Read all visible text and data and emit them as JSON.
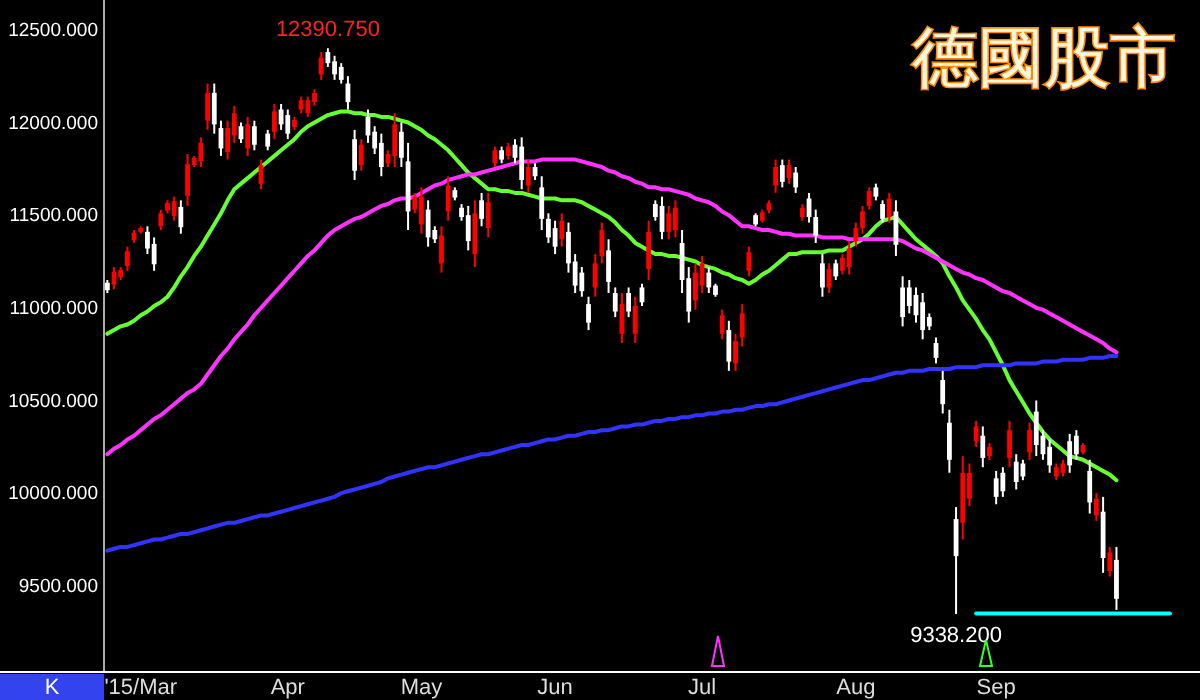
{
  "chart_data": {
    "type": "candlestick",
    "title": "德國股市",
    "categories": [
      null,
      null,
      null,
      null,
      null,
      "'15/Mar",
      null,
      null,
      null,
      null,
      null,
      null,
      null,
      null,
      null,
      null,
      null,
      null,
      null,
      null,
      null,
      null,
      null,
      null,
      null,
      null,
      null,
      "Apr",
      null,
      null,
      null,
      null,
      null,
      null,
      null,
      null,
      null,
      null,
      null,
      null,
      null,
      null,
      null,
      null,
      null,
      null,
      null,
      "May",
      null,
      null,
      null,
      null,
      null,
      null,
      null,
      null,
      null,
      null,
      null,
      null,
      null,
      null,
      null,
      null,
      null,
      null,
      null,
      "Jun",
      null,
      null,
      null,
      null,
      null,
      null,
      null,
      null,
      null,
      null,
      null,
      null,
      null,
      null,
      null,
      null,
      null,
      null,
      null,
      null,
      null,
      "Jul",
      null,
      null,
      null,
      null,
      null,
      null,
      null,
      null,
      null,
      null,
      null,
      null,
      null,
      null,
      null,
      null,
      null,
      null,
      null,
      null,
      null,
      null,
      "Aug",
      null,
      null,
      null,
      null,
      null,
      null,
      null,
      null,
      null,
      null,
      null,
      null,
      null,
      null,
      null,
      null,
      null,
      null,
      null,
      null,
      "Sep",
      null,
      null,
      null,
      null,
      null,
      null,
      null,
      null,
      null,
      null,
      null,
      null,
      null,
      null,
      null,
      null,
      null,
      null,
      null,
      null,
      null,
      null,
      null,
      null,
      null,
      null,
      null,
      null,
      null,
      null
    ],
    "ohlc": [
      [
        11125,
        11140,
        11070,
        11085
      ],
      [
        11115,
        11210,
        11090,
        11185
      ],
      [
        11155,
        11210,
        11140,
        11195
      ],
      [
        11215,
        11320,
        11190,
        11295
      ],
      [
        11355,
        11410,
        11340,
        11395
      ],
      [
        11400,
        11430,
        11390,
        11420
      ],
      [
        11400,
        11430,
        11280,
        11310
      ],
      [
        11335,
        11370,
        11190,
        11225
      ],
      [
        11430,
        11520,
        11410,
        11500
      ],
      [
        11515,
        11570,
        11500,
        11555
      ],
      [
        11485,
        11590,
        11460,
        11565
      ],
      [
        11535,
        11570,
        11390,
        11425
      ],
      [
        11595,
        11820,
        11540,
        11765
      ],
      [
        11760,
        11810,
        11750,
        11800
      ],
      [
        11780,
        11910,
        11750,
        11880
      ],
      [
        12000,
        12200,
        11950,
        12150
      ],
      [
        12150,
        12200,
        11930,
        11980
      ],
      [
        11960,
        12000,
        11810,
        11850
      ],
      [
        11830,
        12000,
        11790,
        11960
      ],
      [
        11920,
        12080,
        11880,
        12040
      ],
      [
        11970,
        11990,
        11880,
        11900
      ],
      [
        11850,
        12020,
        11810,
        11980
      ],
      [
        11970,
        12000,
        11840,
        11870
      ],
      [
        11660,
        11790,
        11630,
        11760
      ],
      [
        11930,
        11950,
        11840,
        11860
      ],
      [
        11940,
        12090,
        11900,
        12050
      ],
      [
        12060,
        12090,
        11950,
        11980
      ],
      [
        12030,
        12060,
        11900,
        11930
      ],
      [
        11965,
        12020,
        11950,
        12005
      ],
      [
        12060,
        12130,
        12040,
        12110
      ],
      [
        12040,
        12130,
        12020,
        12110
      ],
      [
        12100,
        12170,
        12080,
        12150
      ],
      [
        12250,
        12370,
        12220,
        12340
      ],
      [
        12370,
        12390.75,
        12290,
        12310
      ],
      [
        12320,
        12350,
        12220,
        12250
      ],
      [
        12290,
        12310,
        12200,
        12220
      ],
      [
        12200,
        12240,
        12060,
        12100
      ],
      [
        11900,
        11950,
        11680,
        11730
      ],
      [
        11760,
        11900,
        11730,
        11870
      ],
      [
        12020,
        12060,
        11880,
        11920
      ],
      [
        11940,
        11970,
        11820,
        11850
      ],
      [
        11880,
        11930,
        11700,
        11750
      ],
      [
        11770,
        11840,
        11750,
        11820
      ],
      [
        11810,
        12040,
        11750,
        11980
      ],
      [
        11940,
        11990,
        11750,
        11800
      ],
      [
        11780,
        11880,
        11410,
        11510
      ],
      [
        11520,
        11610,
        11500,
        11590
      ],
      [
        11440,
        11640,
        11390,
        11590
      ],
      [
        11520,
        11570,
        11320,
        11370
      ],
      [
        11410,
        11430,
        11340,
        11360
      ],
      [
        11230,
        11430,
        11180,
        11380
      ],
      [
        11510,
        11700,
        11460,
        11650
      ],
      [
        11625,
        11640,
        11570,
        11585
      ],
      [
        11530,
        11550,
        11460,
        11480
      ],
      [
        11490,
        11540,
        11300,
        11350
      ],
      [
        11280,
        11570,
        11210,
        11500
      ],
      [
        11570,
        11610,
        11430,
        11470
      ],
      [
        11420,
        11610,
        11370,
        11560
      ],
      [
        11770,
        11860,
        11750,
        11840
      ],
      [
        11840,
        11860,
        11770,
        11790
      ],
      [
        11810,
        11880,
        11790,
        11860
      ],
      [
        11870,
        11900,
        11770,
        11800
      ],
      [
        11860,
        11910,
        11630,
        11680
      ],
      [
        11650,
        11790,
        11610,
        11750
      ],
      [
        11750,
        11770,
        11680,
        11700
      ],
      [
        11640,
        11700,
        11410,
        11470
      ],
      [
        11470,
        11500,
        11340,
        11370
      ],
      [
        11420,
        11460,
        11280,
        11320
      ],
      [
        11360,
        11500,
        11320,
        11460
      ],
      [
        11400,
        11450,
        11180,
        11230
      ],
      [
        11240,
        11280,
        11070,
        11110
      ],
      [
        11180,
        11210,
        11050,
        11080
      ],
      [
        11010,
        11050,
        10870,
        10910
      ],
      [
        11100,
        11280,
        11050,
        11230
      ],
      [
        11270,
        11450,
        11230,
        11410
      ],
      [
        11300,
        11360,
        11070,
        11130
      ],
      [
        11070,
        11100,
        10940,
        10970
      ],
      [
        10850,
        11070,
        10800,
        11010
      ],
      [
        11070,
        11100,
        10940,
        10970
      ],
      [
        10850,
        11050,
        10800,
        11000
      ],
      [
        11100,
        11120,
        11000,
        11020
      ],
      [
        11200,
        11460,
        11140,
        11400
      ],
      [
        11550,
        11570,
        11460,
        11480
      ],
      [
        11540,
        11590,
        11360,
        11400
      ],
      [
        11400,
        11540,
        11360,
        11500
      ],
      [
        11410,
        11570,
        11370,
        11530
      ],
      [
        11340,
        11410,
        11070,
        11140
      ],
      [
        11150,
        11210,
        10910,
        10970
      ],
      [
        11030,
        11230,
        10980,
        11180
      ],
      [
        11110,
        11270,
        11070,
        11230
      ],
      [
        11180,
        11210,
        11070,
        11100
      ],
      [
        11110,
        11120,
        11050,
        11060
      ],
      [
        10850,
        10980,
        10820,
        10950
      ],
      [
        10870,
        10920,
        10650,
        10700
      ],
      [
        10690,
        10850,
        10650,
        10810
      ],
      [
        10830,
        11010,
        10780,
        10960
      ],
      [
        11190,
        11320,
        11160,
        11290
      ],
      [
        11490,
        11500,
        11430,
        11440
      ],
      [
        11460,
        11520,
        11450,
        11505
      ],
      [
        11515,
        11570,
        11500,
        11555
      ],
      [
        11650,
        11790,
        11610,
        11750
      ],
      [
        11760,
        11790,
        11640,
        11670
      ],
      [
        11690,
        11790,
        11660,
        11760
      ],
      [
        11720,
        11750,
        11610,
        11640
      ],
      [
        11480,
        11550,
        11460,
        11530
      ],
      [
        11580,
        11610,
        11450,
        11480
      ],
      [
        11480,
        11520,
        11340,
        11380
      ],
      [
        11230,
        11280,
        11050,
        11100
      ],
      [
        11100,
        11230,
        11070,
        11200
      ],
      [
        11230,
        11250,
        11140,
        11160
      ],
      [
        11190,
        11280,
        11170,
        11260
      ],
      [
        11210,
        11350,
        11170,
        11310
      ],
      [
        11350,
        11450,
        11320,
        11420
      ],
      [
        11420,
        11540,
        11390,
        11510
      ],
      [
        11540,
        11640,
        11520,
        11620
      ],
      [
        11640,
        11660,
        11570,
        11590
      ],
      [
        11550,
        11570,
        11450,
        11470
      ],
      [
        11480,
        11610,
        11450,
        11580
      ],
      [
        11510,
        11570,
        11270,
        11330
      ],
      [
        11100,
        11160,
        10890,
        10940
      ],
      [
        11100,
        11140,
        10960,
        11000
      ],
      [
        11060,
        11100,
        10910,
        10950
      ],
      [
        11020,
        11070,
        10820,
        10870
      ],
      [
        10940,
        10960,
        10870,
        10890
      ],
      [
        10800,
        10830,
        10690,
        10720
      ],
      [
        10600,
        10650,
        10420,
        10470
      ],
      [
        10370,
        10440,
        10100,
        10170
      ],
      [
        9850,
        9915,
        9338.2,
        9650
      ],
      [
        9830,
        10190,
        9740,
        10100
      ],
      [
        9960,
        10150,
        9920,
        10100
      ],
      [
        10270,
        10380,
        10240,
        10350
      ],
      [
        10300,
        10350,
        10130,
        10180
      ],
      [
        10190,
        10260,
        10170,
        10240
      ],
      [
        10070,
        10110,
        9930,
        9970
      ],
      [
        10100,
        10130,
        9970,
        10000
      ],
      [
        10180,
        10380,
        10130,
        10330
      ],
      [
        10160,
        10200,
        10010,
        10050
      ],
      [
        10150,
        10170,
        10060,
        10080
      ],
      [
        10210,
        10370,
        10170,
        10330
      ],
      [
        10430,
        10490,
        10190,
        10250
      ],
      [
        10300,
        10330,
        10170,
        10200
      ],
      [
        10240,
        10280,
        10100,
        10140
      ],
      [
        10080,
        10150,
        10060,
        10130
      ],
      [
        10100,
        10170,
        10080,
        10150
      ],
      [
        10270,
        10310,
        10100,
        10140
      ],
      [
        10300,
        10330,
        10170,
        10200
      ],
      [
        10210,
        10260,
        10200,
        10250
      ],
      [
        10110,
        10170,
        9880,
        9940
      ],
      [
        9870,
        9990,
        9840,
        9960
      ],
      [
        9890,
        9970,
        9560,
        9640
      ],
      [
        9570,
        9700,
        9540,
        9670
      ],
      [
        9630,
        9700,
        9360,
        9420
      ],
      null,
      null,
      null,
      null,
      null,
      null,
      null,
      null,
      null,
      null,
      null,
      null
    ],
    "colors": [
      "#ffffff",
      "#ff0000",
      "#ff0000",
      "#ff0000",
      "#ff0000",
      "#ff0000",
      "#ffffff",
      "#ffffff",
      "#ff0000",
      "#ff0000",
      "#ff0000",
      "#ffffff",
      "#ff0000",
      "#ff0000",
      "#ff0000",
      "#ff0000",
      "#ffffff",
      "#ffffff",
      "#ff0000",
      "#ff0000",
      "#ffffff",
      "#ff0000",
      "#ffffff",
      "#ff0000",
      "#ffffff",
      "#ff0000",
      "#ffffff",
      "#ffffff",
      "#ff0000",
      "#ff0000",
      "#ff0000",
      "#ff0000",
      "#ff0000",
      "#ffffff",
      "#ffffff",
      "#ffffff",
      "#ffffff",
      "#ffffff",
      "#ff0000",
      "#ffffff",
      "#ffffff",
      "#ffffff",
      "#ff0000",
      "#ff0000",
      "#ffffff",
      "#ffffff",
      "#ff0000",
      "#ff0000",
      "#ffffff",
      "#ffffff",
      "#ff0000",
      "#ff0000",
      "#ffffff",
      "#ffffff",
      "#ffffff",
      "#ff0000",
      "#ffffff",
      "#ff0000",
      "#ff0000",
      "#ffffff",
      "#ff0000",
      "#ffffff",
      "#ffffff",
      "#ff0000",
      "#ffffff",
      "#ffffff",
      "#ffffff",
      "#ffffff",
      "#ff0000",
      "#ffffff",
      "#ffffff",
      "#ffffff",
      "#ffffff",
      "#ff0000",
      "#ff0000",
      "#ffffff",
      "#ffffff",
      "#ff0000",
      "#ffffff",
      "#ff0000",
      "#ffffff",
      "#ff0000",
      "#ffffff",
      "#ffffff",
      "#ff0000",
      "#ff0000",
      "#ffffff",
      "#ffffff",
      "#ff0000",
      "#ff0000",
      "#ffffff",
      "#ffffff",
      "#ff0000",
      "#ffffff",
      "#ff0000",
      "#ff0000",
      "#ff0000",
      "#ffffff",
      "#ff0000",
      "#ff0000",
      "#ff0000",
      "#ffffff",
      "#ff0000",
      "#ffffff",
      "#ff0000",
      "#ffffff",
      "#ffffff",
      "#ffffff",
      "#ff0000",
      "#ffffff",
      "#ff0000",
      "#ff0000",
      "#ff0000",
      "#ff0000",
      "#ff0000",
      "#ffffff",
      "#ffffff",
      "#ff0000",
      "#ffffff",
      "#ffffff",
      "#ffffff",
      "#ffffff",
      "#ffffff",
      "#ffffff",
      "#ffffff",
      "#ffffff",
      "#ffffff",
      "#ffffff",
      "#ff0000",
      "#ff0000",
      "#ff0000",
      "#ffffff",
      "#ff0000",
      "#ffffff",
      "#ffffff",
      "#ff0000",
      "#ffffff",
      "#ffffff",
      "#ff0000",
      "#ffffff",
      "#ffffff",
      "#ffffff",
      "#ff0000",
      "#ff0000",
      "#ffffff",
      "#ffffff",
      "#ff0000",
      "#ffffff",
      "#ff0000",
      "#ffffff",
      "#ff0000",
      "#ffffff",
      null,
      null,
      null,
      null,
      null,
      null,
      null,
      null,
      null,
      null,
      null,
      null
    ],
    "series": [
      {
        "type": "line",
        "color": "#66ff33",
        "values": [
          10850,
          10870,
          10890,
          10900,
          10920,
          10950,
          10970,
          11000,
          11020,
          11050,
          11100,
          11160,
          11210,
          11270,
          11320,
          11380,
          11440,
          11500,
          11570,
          11630,
          11660,
          11690,
          11720,
          11750,
          11780,
          11810,
          11840,
          11870,
          11900,
          11940,
          11970,
          11990,
          12010,
          12030,
          12040,
          12050,
          12050,
          12040,
          12040,
          12030,
          12030,
          12020,
          12020,
          12010,
          12000,
          11990,
          11970,
          11950,
          11920,
          11900,
          11870,
          11840,
          11800,
          11760,
          11720,
          11690,
          11660,
          11630,
          11630,
          11620,
          11620,
          11610,
          11610,
          11600,
          11590,
          11580,
          11580,
          11580,
          11570,
          11570,
          11570,
          11560,
          11540,
          11520,
          11500,
          11480,
          11450,
          11410,
          11380,
          11340,
          11320,
          11300,
          11280,
          11280,
          11270,
          11270,
          11260,
          11250,
          11240,
          11220,
          11210,
          11200,
          11180,
          11170,
          11150,
          11140,
          11120,
          11140,
          11170,
          11190,
          11220,
          11250,
          11280,
          11280,
          11290,
          11290,
          11290,
          11290,
          11300,
          11300,
          11300,
          11320,
          11340,
          11360,
          11390,
          11430,
          11460,
          11470,
          11480,
          11440,
          11400,
          11360,
          11330,
          11300,
          11270,
          11230,
          11160,
          11100,
          11030,
          10980,
          10930,
          10870,
          10820,
          10750,
          10680,
          10600,
          10540,
          10480,
          10420,
          10370,
          10320,
          10280,
          10250,
          10220,
          10190,
          10180,
          10170,
          10150,
          10130,
          10110,
          10090,
          10060,
          null,
          null,
          null,
          null,
          null,
          null,
          null,
          null,
          null,
          null,
          null,
          null
        ]
      },
      {
        "type": "line",
        "color": "#ff33ff",
        "values": [
          10200,
          10230,
          10250,
          10280,
          10300,
          10330,
          10360,
          10390,
          10410,
          10440,
          10470,
          10500,
          10530,
          10550,
          10580,
          10630,
          10680,
          10730,
          10770,
          10820,
          10860,
          10900,
          10950,
          10990,
          11030,
          11070,
          11110,
          11150,
          11190,
          11230,
          11270,
          11300,
          11340,
          11380,
          11410,
          11430,
          11450,
          11470,
          11480,
          11500,
          11520,
          11540,
          11550,
          11570,
          11580,
          11580,
          11590,
          11610,
          11630,
          11650,
          11660,
          11680,
          11690,
          11700,
          11710,
          11710,
          11720,
          11730,
          11740,
          11750,
          11760,
          11770,
          11780,
          11780,
          11780,
          11790,
          11790,
          11790,
          11790,
          11790,
          11790,
          11780,
          11770,
          11760,
          11750,
          11730,
          11720,
          11700,
          11690,
          11670,
          11660,
          11640,
          11640,
          11630,
          11630,
          11620,
          11610,
          11600,
          11580,
          11570,
          11560,
          11540,
          11510,
          11490,
          11460,
          11430,
          11430,
          11420,
          11410,
          11410,
          11400,
          11390,
          11390,
          11380,
          11380,
          11380,
          11380,
          11370,
          11370,
          11370,
          11370,
          11360,
          11360,
          11360,
          11360,
          11360,
          11360,
          11360,
          11360,
          11350,
          11330,
          11310,
          11300,
          11280,
          11260,
          11240,
          11220,
          11200,
          11180,
          11170,
          11150,
          11140,
          11120,
          11100,
          11080,
          11070,
          11050,
          11030,
          11010,
          10990,
          10980,
          10960,
          10940,
          10920,
          10900,
          10880,
          10860,
          10840,
          10820,
          10800,
          10770,
          10750,
          null,
          null,
          null,
          null,
          null,
          null,
          null,
          null,
          null,
          null,
          null,
          null
        ]
      },
      {
        "type": "line",
        "color": "#3333ff",
        "values": [
          9680,
          9690,
          9700,
          9700,
          9710,
          9720,
          9730,
          9740,
          9740,
          9750,
          9760,
          9770,
          9770,
          9780,
          9790,
          9800,
          9810,
          9820,
          9830,
          9830,
          9840,
          9850,
          9860,
          9870,
          9870,
          9880,
          9890,
          9900,
          9910,
          9920,
          9930,
          9940,
          9950,
          9960,
          9970,
          9990,
          10000,
          10010,
          10020,
          10030,
          10040,
          10050,
          10070,
          10080,
          10090,
          10100,
          10110,
          10120,
          10130,
          10130,
          10140,
          10150,
          10160,
          10170,
          10180,
          10190,
          10200,
          10200,
          10210,
          10220,
          10230,
          10240,
          10250,
          10250,
          10260,
          10270,
          10280,
          10280,
          10290,
          10300,
          10300,
          10310,
          10320,
          10320,
          10330,
          10330,
          10340,
          10350,
          10350,
          10360,
          10360,
          10370,
          10380,
          10380,
          10390,
          10390,
          10400,
          10400,
          10410,
          10410,
          10420,
          10420,
          10430,
          10430,
          10440,
          10440,
          10450,
          10460,
          10460,
          10470,
          10470,
          10480,
          10490,
          10500,
          10510,
          10520,
          10530,
          10540,
          10550,
          10560,
          10570,
          10580,
          10590,
          10600,
          10600,
          10610,
          10620,
          10630,
          10640,
          10640,
          10650,
          10650,
          10650,
          10660,
          10660,
          10660,
          10660,
          10670,
          10670,
          10670,
          10670,
          10680,
          10680,
          10680,
          10680,
          10680,
          10690,
          10690,
          10690,
          10690,
          10700,
          10700,
          10700,
          10710,
          10710,
          10710,
          10710,
          10720,
          10720,
          10720,
          10730,
          10730,
          null,
          null,
          null,
          null,
          null,
          null,
          null,
          null,
          null,
          null,
          null,
          null
        ]
      },
      {
        "type": "line",
        "color": "#00ffff",
        "values": [
          null,
          null,
          null,
          null,
          null,
          null,
          null,
          null,
          null,
          null,
          null,
          null,
          null,
          null,
          null,
          null,
          null,
          null,
          null,
          null,
          null,
          null,
          null,
          null,
          null,
          null,
          null,
          null,
          null,
          null,
          null,
          null,
          null,
          null,
          null,
          null,
          null,
          null,
          null,
          null,
          null,
          null,
          null,
          null,
          null,
          null,
          null,
          null,
          null,
          null,
          null,
          null,
          null,
          null,
          null,
          null,
          null,
          null,
          null,
          null,
          null,
          null,
          null,
          null,
          null,
          null,
          null,
          null,
          null,
          null,
          null,
          null,
          null,
          null,
          null,
          null,
          null,
          null,
          null,
          null,
          null,
          null,
          null,
          null,
          null,
          null,
          null,
          null,
          null,
          null,
          null,
          null,
          null,
          null,
          null,
          null,
          null,
          null,
          null,
          null,
          null,
          null,
          null,
          null,
          null,
          null,
          null,
          null,
          null,
          null,
          null,
          null,
          null,
          null,
          null,
          null,
          null,
          null,
          null,
          null,
          null,
          null,
          null,
          null,
          null,
          null,
          null,
          null,
          null,
          null,
          9340,
          9340,
          9340,
          9340,
          9340,
          9340,
          9340,
          9340,
          9340,
          9340,
          9340,
          9340,
          9340,
          9340,
          9340,
          9340,
          9340,
          9340,
          9340,
          9340,
          9340,
          9340,
          9340,
          9340,
          9340,
          9340,
          9340,
          9340,
          9340,
          9340,
          null,
          null,
          null,
          null
        ]
      }
    ],
    "ylim": [
      9025,
      12651
    ],
    "yticks": [
      {
        "value": 9500,
        "label": "9500.000"
      },
      {
        "value": 10000,
        "label": "10000.000"
      },
      {
        "value": 10500,
        "label": "10500.000"
      },
      {
        "value": 11000,
        "label": "11000.000"
      },
      {
        "value": 11500,
        "label": "11500.000"
      },
      {
        "value": 12000,
        "label": "12000.000"
      },
      {
        "value": 12500,
        "label": "12500.000"
      }
    ],
    "annotations": [
      {
        "text": "12390.750",
        "y": 12390.75
      },
      {
        "text": "9338.200",
        "y": 9338.2
      },
      "K"
    ],
    "grid": false
  }
}
